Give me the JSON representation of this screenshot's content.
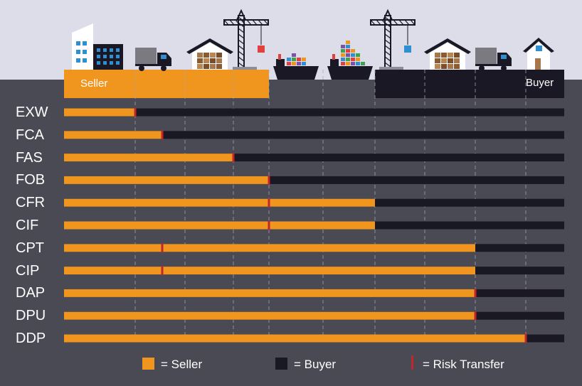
{
  "colors": {
    "seller": "#f0961e",
    "buyer": "#1a1824",
    "risk_transfer": "#c0262d",
    "background": "#4a4a55",
    "sky": "#dcdde8"
  },
  "header": {
    "seller_label": "Seller",
    "buyer_label": "Buyer",
    "stage_icons": [
      "seller-building-icon",
      "truck-icon",
      "warehouse-icon",
      "crane-icon",
      "ship-icon",
      "ship-icon",
      "crane-icon",
      "warehouse-icon",
      "truck-icon",
      "buyer-house-icon"
    ]
  },
  "legend": {
    "seller": "= Seller",
    "buyer": "= Buyer",
    "risk_transfer": "= Risk Transfer"
  },
  "incoterms": [
    {
      "term": "EXW",
      "seller_until_stage": 1,
      "risk_transfer_stage": 1
    },
    {
      "term": "FCA",
      "seller_until_stage": 1.5,
      "risk_transfer_stage": 1.5
    },
    {
      "term": "FAS",
      "seller_until_stage": 3,
      "risk_transfer_stage": 3
    },
    {
      "term": "FOB",
      "seller_until_stage": 3.5,
      "risk_transfer_stage": 3.5
    },
    {
      "term": "CFR",
      "seller_until_stage": 5,
      "risk_transfer_stage": 3.5
    },
    {
      "term": "CIF",
      "seller_until_stage": 5,
      "risk_transfer_stage": 3.5
    },
    {
      "term": "CPT",
      "seller_until_stage": 6.5,
      "risk_transfer_stage": 1.5
    },
    {
      "term": "CIP",
      "seller_until_stage": 6.5,
      "risk_transfer_stage": 1.5
    },
    {
      "term": "DAP",
      "seller_until_stage": 6.5,
      "risk_transfer_stage": 6.5
    },
    {
      "term": "DPU",
      "seller_until_stage": 6.5,
      "risk_transfer_stage": 6.5
    },
    {
      "term": "DDP",
      "seller_until_stage": 7,
      "risk_transfer_stage": 7
    }
  ]
}
